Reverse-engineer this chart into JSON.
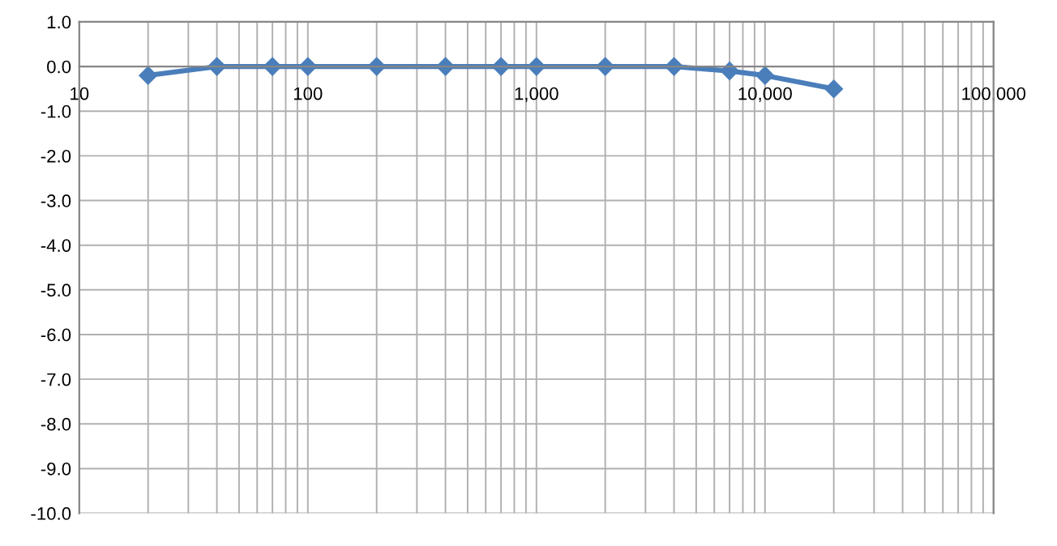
{
  "chart_data": {
    "type": "line",
    "x": [
      20,
      40,
      70,
      100,
      200,
      400,
      700,
      1000,
      2000,
      4000,
      7000,
      10000,
      20000
    ],
    "series": [
      {
        "color": "#4a7ebb",
        "values": [
          -0.2,
          0,
          0,
          0,
          0,
          0,
          0,
          0,
          0,
          0,
          -0.1,
          -0.2,
          -0.5
        ]
      }
    ],
    "log": "x",
    "marker": "diamond",
    "line_style": "solid",
    "grid": true,
    "xlim": [
      10,
      100000
    ],
    "xticks": [
      10,
      100,
      {
        "value": 1000,
        "label": "1,000"
      },
      {
        "value": 10000,
        "label": "10,000"
      },
      {
        "value": 100000,
        "label": "100,000"
      }
    ],
    "ylim": [
      -10,
      1
    ],
    "yticks": [
      {
        "value": 1,
        "label": "1.0"
      },
      {
        "value": 0,
        "label": "0.0"
      },
      {
        "value": -1,
        "label": "-1.0"
      },
      {
        "value": -2,
        "label": "-2.0"
      },
      {
        "value": -3,
        "label": "-3.0"
      },
      {
        "value": -4,
        "label": "-4.0"
      },
      {
        "value": -5,
        "label": "-5.0"
      },
      {
        "value": -6,
        "label": "-6.0"
      },
      {
        "value": -7,
        "label": "-7.0"
      },
      {
        "value": -8,
        "label": "-8.0"
      },
      {
        "value": -9,
        "label": "-9.0"
      },
      {
        "value": -10,
        "label": "-10.0"
      }
    ]
  }
}
